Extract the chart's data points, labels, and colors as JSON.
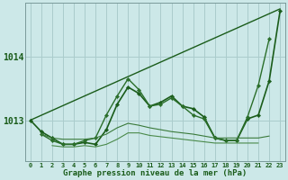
{
  "xlabel": "Graphe pression niveau de la mer (hPa)",
  "x_ticks": [
    0,
    1,
    2,
    3,
    4,
    5,
    6,
    7,
    8,
    9,
    10,
    11,
    12,
    13,
    14,
    15,
    16,
    17,
    18,
    19,
    20,
    21,
    22,
    23
  ],
  "ylim": [
    1012.35,
    1014.85
  ],
  "yticks": [
    1013,
    1014
  ],
  "bg_color": "#cce8e8",
  "grid_color": "#aacccc",
  "series": [
    {
      "name": "diagonal_trend",
      "x": [
        0,
        23
      ],
      "y": [
        1013.0,
        1014.75
      ],
      "color": "#1a5c1a",
      "linewidth": 1.0,
      "marker": null,
      "markersize": 0
    },
    {
      "name": "line_main_with_markers",
      "x": [
        0,
        1,
        2,
        3,
        4,
        5,
        6,
        7,
        8,
        9,
        10,
        11,
        12,
        13,
        14,
        15,
        16,
        17,
        18,
        19,
        20,
        21,
        22,
        23
      ],
      "y": [
        1013.0,
        1012.82,
        1012.72,
        1012.62,
        1012.62,
        1012.65,
        1012.62,
        1012.85,
        1013.25,
        1013.52,
        1013.42,
        1013.22,
        1013.28,
        1013.38,
        1013.22,
        1013.18,
        1013.05,
        1012.72,
        1012.68,
        1012.68,
        1013.02,
        1013.08,
        1013.62,
        1014.72
      ],
      "color": "#1a5c1a",
      "linewidth": 1.2,
      "marker": "D",
      "markersize": 2.2
    },
    {
      "name": "line2_markers",
      "x": [
        1,
        2,
        3,
        4,
        5,
        6,
        7,
        8,
        9,
        10,
        11,
        12,
        13,
        14,
        15,
        16,
        17,
        18,
        19,
        20,
        21,
        22
      ],
      "y": [
        1012.78,
        1012.68,
        1012.62,
        1012.62,
        1012.68,
        1012.72,
        1013.08,
        1013.38,
        1013.65,
        1013.48,
        1013.22,
        1013.25,
        1013.35,
        1013.22,
        1013.08,
        1013.02,
        1012.72,
        1012.68,
        1012.68,
        1013.05,
        1013.55,
        1014.28
      ],
      "color": "#2a6e2a",
      "linewidth": 1.0,
      "marker": "D",
      "markersize": 2.2
    },
    {
      "name": "line3_no_marker",
      "x": [
        1,
        2,
        3,
        4,
        5,
        6,
        7,
        8,
        9,
        10,
        11,
        12,
        13,
        14,
        15,
        16,
        17,
        18,
        19,
        20,
        21,
        22
      ],
      "y": [
        1012.78,
        1012.72,
        1012.7,
        1012.7,
        1012.7,
        1012.72,
        1012.78,
        1012.88,
        1012.95,
        1012.92,
        1012.88,
        1012.85,
        1012.82,
        1012.8,
        1012.78,
        1012.75,
        1012.72,
        1012.72,
        1012.72,
        1012.72,
        1012.72,
        1012.75
      ],
      "color": "#3a7a3a",
      "linewidth": 0.8,
      "marker": null,
      "markersize": 0
    },
    {
      "name": "line4_no_marker_lower",
      "x": [
        2,
        3,
        4,
        5,
        6,
        7,
        8,
        9,
        10,
        11,
        12,
        13,
        14,
        15,
        16,
        17,
        18,
        19,
        20,
        21
      ],
      "y": [
        1012.6,
        1012.58,
        1012.58,
        1012.6,
        1012.58,
        1012.62,
        1012.7,
        1012.8,
        1012.8,
        1012.76,
        1012.74,
        1012.72,
        1012.7,
        1012.68,
        1012.66,
        1012.64,
        1012.64,
        1012.64,
        1012.64,
        1012.64
      ],
      "color": "#4a8a4a",
      "linewidth": 0.8,
      "marker": null,
      "markersize": 0
    }
  ]
}
